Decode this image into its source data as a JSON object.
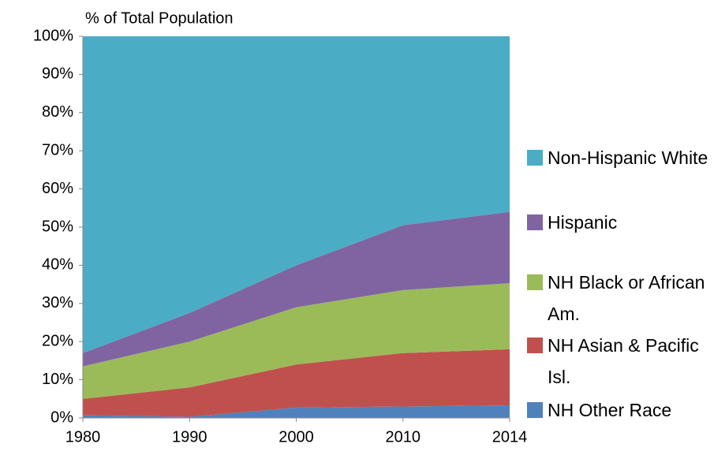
{
  "chart_data": {
    "type": "stacked_area",
    "y_label": "% of Total Population",
    "categories": [
      "1980",
      "1990",
      "2000",
      "2010",
      "2014"
    ],
    "series": [
      {
        "name": "NH Other Race",
        "color": "#4f81bd",
        "values": [
          0.7,
          0.3,
          2.7,
          3,
          3.3
        ]
      },
      {
        "name": "NH Asian & Pacific Isl.",
        "color": "#c0504d",
        "values": [
          4.3,
          7.7,
          11.3,
          14,
          14.7
        ]
      },
      {
        "name": "NH Black or African Am.",
        "color": "#9bbb59",
        "values": [
          8.5,
          12,
          15,
          16.5,
          17.3
        ]
      },
      {
        "name": "Hispanic",
        "color": "#8064a2",
        "values": [
          3.5,
          7.5,
          11,
          17,
          18.7
        ]
      },
      {
        "name": "Non-Hispanic White",
        "color": "#4bacc6",
        "values": [
          83,
          72.5,
          60,
          49.5,
          46
        ]
      }
    ],
    "ylim": [
      0,
      100
    ],
    "yticks": [
      {
        "value": 0,
        "label": "0%"
      },
      {
        "value": 10,
        "label": "10%"
      },
      {
        "value": 20,
        "label": "20%"
      },
      {
        "value": 30,
        "label": "30%"
      },
      {
        "value": 40,
        "label": "40%"
      },
      {
        "value": 50,
        "label": "50%"
      },
      {
        "value": 60,
        "label": "60%"
      },
      {
        "value": 70,
        "label": "70%"
      },
      {
        "value": 80,
        "label": "80%"
      },
      {
        "value": 90,
        "label": "90%"
      },
      {
        "value": 100,
        "label": "100%"
      }
    ],
    "legend": "right"
  }
}
